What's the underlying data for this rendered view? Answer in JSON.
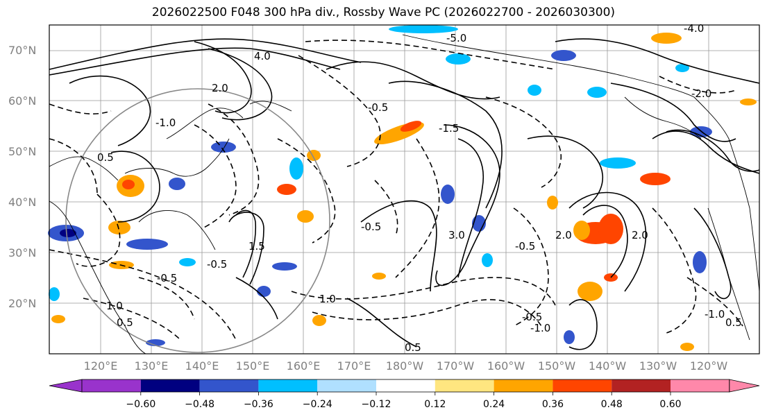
{
  "title": "2026022500 F048 300 hPa div., Rossby Wave PC (2026022700 - 2026030300)",
  "map": {
    "lat_labels": [
      "70°N",
      "60°N",
      "50°N",
      "40°N",
      "30°N",
      "20°N"
    ],
    "lon_labels": [
      "120°E",
      "130°E",
      "140°E",
      "150°E",
      "160°E",
      "170°E",
      "180°W",
      "170°W",
      "160°W",
      "150°W",
      "140°W",
      "130°W",
      "120°W"
    ],
    "contour_labels": [
      "-5.0",
      "-4.0",
      "-2.0",
      "-1.5",
      "-1.0",
      "-0.5",
      "0.5",
      "1.0",
      "1.5",
      "2.0",
      "3.0",
      "4.0"
    ],
    "colors": {
      "coast": "#000000",
      "grid": "#999999",
      "circle": "#888888"
    }
  },
  "colorbar": {
    "ticks": [
      "−0.60",
      "−0.48",
      "−0.36",
      "−0.24",
      "−0.12",
      "0.12",
      "0.24",
      "0.36",
      "0.48",
      "0.60"
    ],
    "colors": [
      "#9933cc",
      "#000080",
      "#3355cc",
      "#00bfff",
      "#b0e0ff",
      "#ffffff",
      "#ffe680",
      "#ffa500",
      "#ff4500",
      "#b22222",
      "#ff88aa"
    ]
  }
}
